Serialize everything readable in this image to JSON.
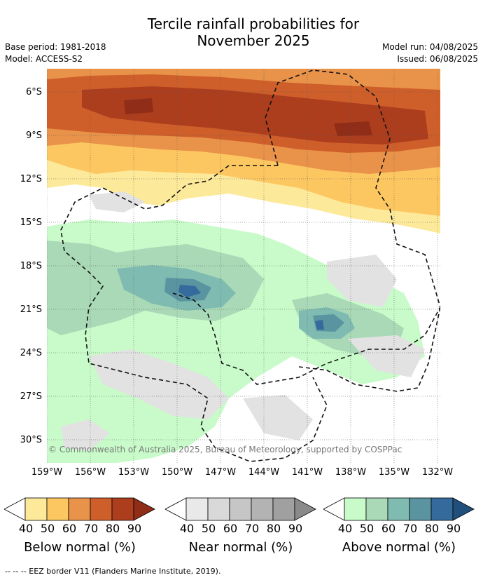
{
  "title_line1": "Tercile rainfall probabilities for",
  "title_line2": "November 2025",
  "base_period": "Base period: 1981-2018",
  "model": "Model: ACCESS-S2",
  "model_run": "Model run: 04/08/2025",
  "issued": "Issued: 06/08/2025",
  "lat_labels": [
    "6°S",
    "9°S",
    "12°S",
    "15°S",
    "18°S",
    "21°S",
    "24°S",
    "27°S",
    "30°S"
  ],
  "lon_labels": [
    "159°W",
    "156°W",
    "153°W",
    "150°W",
    "147°W",
    "144°W",
    "141°W",
    "138°W",
    "135°W",
    "132°W"
  ],
  "copyright": "© Commonwealth of Australia 2025, Bureau of Meteorology, supported by COSPPac",
  "legends": [
    {
      "title": "Below normal (%)",
      "ticks": [
        "40",
        "50",
        "60",
        "70",
        "80",
        "90"
      ],
      "colors": [
        "#ffffff",
        "#fde99a",
        "#fcc761",
        "#e9934a",
        "#cf5f2a",
        "#ac3e1e",
        "#8f2d18"
      ]
    },
    {
      "title": "Near normal (%)",
      "ticks": [
        "40",
        "50",
        "60",
        "70",
        "80",
        "90"
      ],
      "colors": [
        "#ffffff",
        "#e9e9e9",
        "#d9d9d9",
        "#c6c6c6",
        "#b3b3b3",
        "#a0a0a0",
        "#8a8a8a"
      ]
    },
    {
      "title": "Above normal (%)",
      "ticks": [
        "40",
        "50",
        "60",
        "70",
        "80",
        "90"
      ],
      "colors": [
        "#ffffff",
        "#c8fbc9",
        "#a9d9b6",
        "#7fbbb1",
        "#5a94a1",
        "#356a9c",
        "#1f4f7a"
      ]
    }
  ],
  "footnote": "-- -- -- EEZ border V11 (Flanders Marine Institute, 2019)."
}
